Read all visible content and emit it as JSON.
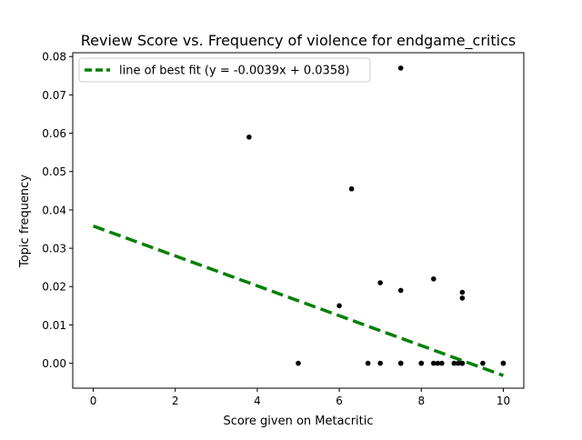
{
  "chart_data": {
    "type": "scatter",
    "title": "Review Score vs. Frequency of violence for endgame_critics",
    "xlabel": "Score given on Metacritic",
    "ylabel": "Topic frequency",
    "xlim": [
      -0.5,
      10.5
    ],
    "ylim": [
      -0.0065,
      0.081
    ],
    "xticks": [
      0,
      2,
      4,
      6,
      8,
      10
    ],
    "xtick_labels": [
      "0",
      "2",
      "4",
      "6",
      "8",
      "10"
    ],
    "yticks": [
      0.0,
      0.01,
      0.02,
      0.03,
      0.04,
      0.05,
      0.06,
      0.07,
      0.08
    ],
    "ytick_labels": [
      "0.00",
      "0.01",
      "0.02",
      "0.03",
      "0.04",
      "0.05",
      "0.06",
      "0.07",
      "0.08"
    ],
    "grid": false,
    "legend_position": "top-left",
    "points": {
      "color": "#000000",
      "x": [
        3.8,
        5.0,
        6.0,
        6.3,
        6.7,
        7.0,
        7.0,
        7.5,
        7.5,
        7.5,
        7.5,
        8.0,
        8.0,
        8.3,
        8.3,
        8.4,
        8.5,
        8.8,
        8.9,
        9.0,
        9.0,
        9.0,
        9.0,
        9.5,
        10.0,
        10.0
      ],
      "y": [
        0.059,
        0.0,
        0.015,
        0.0455,
        0.0,
        0.021,
        0.0,
        0.077,
        0.019,
        0.0,
        0.0,
        0.0,
        0.0,
        0.022,
        0.0,
        0.0,
        0.0,
        0.0,
        0.0,
        0.0185,
        0.017,
        0.0,
        0.0,
        0.0,
        0.0,
        0.0
      ]
    },
    "fit_line": {
      "label": "line of best fit (y = -0.0039x + 0.0358)",
      "slope": -0.0039,
      "intercept": 0.0358,
      "x_range": [
        0,
        10
      ],
      "color": "#008000",
      "style": "dashed"
    }
  }
}
